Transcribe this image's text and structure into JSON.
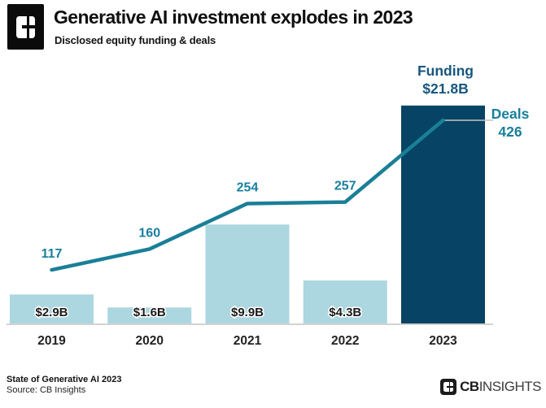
{
  "header": {
    "title": "Generative AI investment explodes in 2023",
    "subtitle": "Disclosed equity funding & deals"
  },
  "footer": {
    "report": "State of Generative AI 2023",
    "source": "Source: CB Insights",
    "logo_cb": "CB",
    "logo_insights": "INSIGHTS"
  },
  "icons": {
    "brand_mark": "cb-insights-block-logo"
  },
  "chart_data": {
    "type": "bar",
    "title": "Generative AI investment explodes in 2023",
    "subtitle": "Disclosed equity funding & deals",
    "xlabel": "",
    "ylabel": "",
    "grid": false,
    "legend_position": "inline-annotations",
    "categories": [
      "2019",
      "2020",
      "2021",
      "2022",
      "2023"
    ],
    "series": [
      {
        "name": "Funding",
        "type": "bar",
        "unit": "$B",
        "values": [
          2.9,
          1.6,
          9.9,
          4.3,
          21.8
        ],
        "bar_labels": [
          "$2.9B",
          "$1.6B",
          "$9.9B",
          "$4.3B",
          null
        ],
        "ylim": [
          0,
          24
        ]
      },
      {
        "name": "Deals",
        "type": "line",
        "values": [
          117,
          160,
          254,
          257,
          426
        ],
        "point_labels": [
          "117",
          "160",
          "254",
          "257",
          null
        ],
        "ylim": [
          0,
          450
        ]
      }
    ],
    "highlight_index": 4,
    "annotations": {
      "funding_title": "Funding",
      "funding_value": "$21.8B",
      "deals_title": "Deals",
      "deals_value": "426"
    },
    "colors": {
      "bar_light": "#acd6e0",
      "bar_highlight": "#064364",
      "line": "#1a7f97",
      "deal_label": "#177f9d",
      "funding_label": "#16567e",
      "axis": "#d2d2d2",
      "connector": "#c4c4c4",
      "bar_value_text": "#1a1a1a",
      "year_text": "#232323"
    }
  }
}
